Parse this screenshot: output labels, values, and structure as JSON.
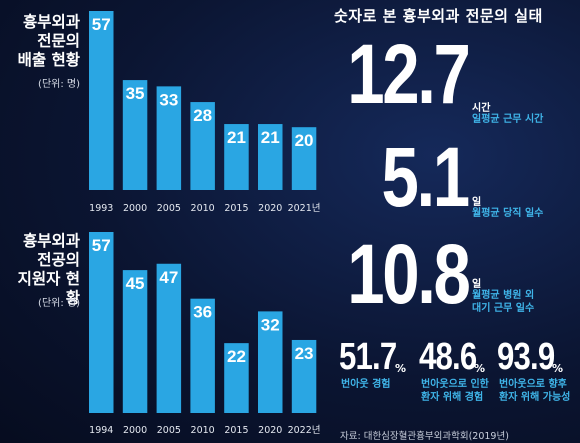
{
  "chart_data": [
    {
      "type": "bar",
      "title": "흉부외과 전문의 배출 현황",
      "unit": "(단위: 명)",
      "categories": [
        "1993",
        "2000",
        "2005",
        "2010",
        "2015",
        "2020",
        "2021년"
      ],
      "values": [
        57,
        35,
        33,
        28,
        21,
        21,
        20
      ]
    },
    {
      "type": "bar",
      "title": "흉부외과 전공의 지원자 현황",
      "unit": "(단위: 명)",
      "categories": [
        "1994",
        "2000",
        "2005",
        "2010",
        "2015",
        "2020",
        "2022년"
      ],
      "values": [
        57,
        45,
        47,
        36,
        22,
        32,
        23
      ]
    }
  ],
  "left_titles": {
    "top": [
      "흉부외과",
      "전문의",
      "배출 현황"
    ],
    "bottom": [
      "흉부외과",
      "전공의",
      "지원자 현황"
    ],
    "unit": "(단위: 명)"
  },
  "right": {
    "title": "숫자로 본 흉부외과 전문의 실태",
    "stats": [
      {
        "value": "12.7",
        "unit": "시간",
        "desc": [
          "일평균 근무 시간"
        ]
      },
      {
        "value": "5.1",
        "unit": "일",
        "desc": [
          "월평균 당직 일수"
        ]
      },
      {
        "value": "10.8",
        "unit": "일",
        "desc": [
          "월평균 병원 외",
          "대기 근무 일수"
        ]
      }
    ],
    "percents": [
      {
        "value": "51.7",
        "sign": "%",
        "desc": [
          "번아웃 경험"
        ]
      },
      {
        "value": "48.6",
        "sign": "%",
        "desc": [
          "번아웃으로 인한",
          "환자 위해 경험"
        ]
      },
      {
        "value": "93.9",
        "sign": "%",
        "desc": [
          "번아웃으로 향후",
          "환자 위해 가능성"
        ]
      }
    ],
    "source": "자료: 대한심장혈관흉부외과학회(2019년)"
  },
  "colors": {
    "bar": "#2aa6e3",
    "background": "#0b1532",
    "accent": "#3fb4e8"
  }
}
